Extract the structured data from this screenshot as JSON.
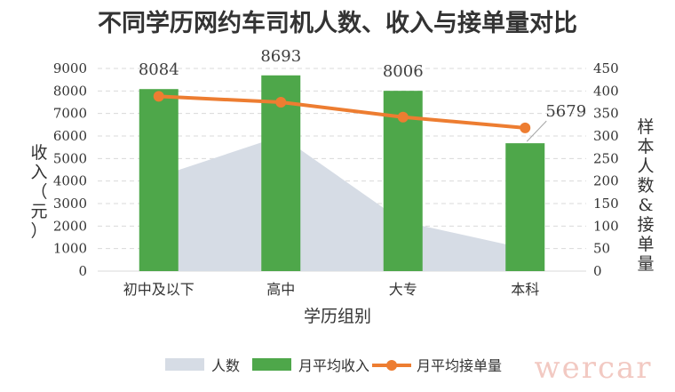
{
  "chart_data": {
    "type": "bar",
    "title": "不同学历网约车司机人数、收入与接单量对比",
    "xlabel": "学历组别",
    "ylabel": "收入（元）",
    "y2label": "样本人数&接单量",
    "categories": [
      "初中及以下",
      "高中",
      "大专",
      "本科"
    ],
    "ylim": [
      0,
      9000
    ],
    "y_ticks": [
      0,
      1000,
      2000,
      3000,
      4000,
      5000,
      6000,
      7000,
      8000,
      9000
    ],
    "y2lim": [
      0,
      450
    ],
    "y2_ticks": [
      0,
      50,
      100,
      150,
      200,
      250,
      300,
      350,
      400,
      450
    ],
    "grid": true,
    "legend_position": "bottom",
    "series": [
      {
        "name": "人数",
        "type": "area",
        "axis": "right",
        "color": "#d6dce5",
        "values": [
          210,
          300,
          110,
          50
        ]
      },
      {
        "name": "月平均收入",
        "type": "bar",
        "axis": "left",
        "color": "#4ea74a",
        "values": [
          8084,
          8693,
          8006,
          5679
        ],
        "labels": [
          "8084",
          "8693",
          "8006",
          "5679"
        ]
      },
      {
        "name": "月平均接单量",
        "type": "line",
        "axis": "right",
        "color": "#ed7d31",
        "values": [
          388,
          375,
          342,
          318
        ]
      }
    ]
  },
  "watermark": "wercar"
}
